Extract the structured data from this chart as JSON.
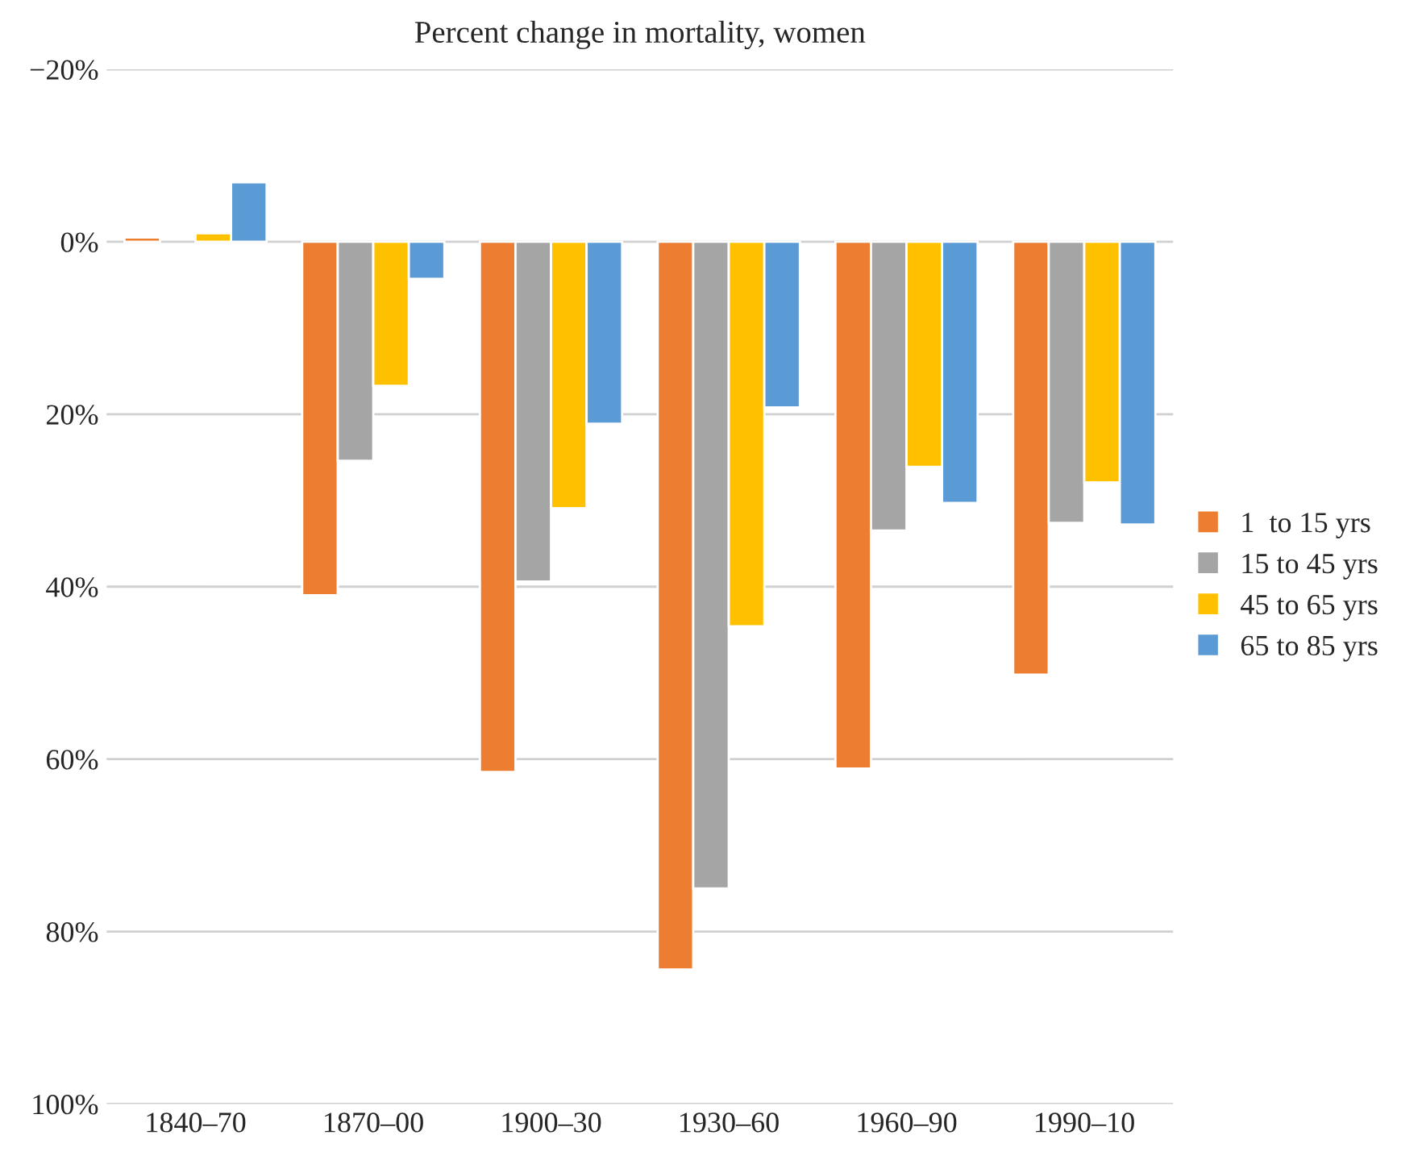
{
  "chart_data": {
    "type": "bar",
    "title": "Percent change in mortality, women",
    "categories": [
      "1840–70",
      "1870–00",
      "1900–30",
      "1930–60",
      "1960–90",
      "1990–10"
    ],
    "series": [
      {
        "name": "1  to 15 yrs",
        "color": "#ed7d31",
        "values": [
          -0.5,
          41.0,
          61.5,
          84.4,
          61.1,
          50.2
        ]
      },
      {
        "name": "15 to 45 yrs",
        "color": "#a5a5a5",
        "values": [
          null,
          25.4,
          39.4,
          75.0,
          33.5,
          32.6
        ]
      },
      {
        "name": "45 to 65 yrs",
        "color": "#ffc000",
        "values": [
          -1.0,
          16.7,
          30.9,
          44.6,
          26.1,
          27.9
        ]
      },
      {
        "name": "65 to 85 yrs",
        "color": "#5b9bd5",
        "values": [
          -6.9,
          4.3,
          21.1,
          19.2,
          30.3,
          32.8
        ]
      }
    ],
    "ylim": [
      100,
      -20
    ],
    "yticks": [
      {
        "value": -20,
        "label": "−20%"
      },
      {
        "value": 0,
        "label": "0%"
      },
      {
        "value": 20,
        "label": "20%"
      },
      {
        "value": 40,
        "label": "40%"
      },
      {
        "value": 60,
        "label": "60%"
      },
      {
        "value": 80,
        "label": "80%"
      },
      {
        "value": 100,
        "label": "100%"
      }
    ],
    "grid": "y",
    "legend": "right"
  }
}
